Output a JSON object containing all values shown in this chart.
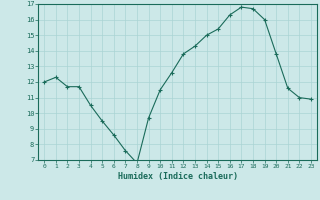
{
  "x": [
    0,
    1,
    2,
    3,
    4,
    5,
    6,
    7,
    8,
    9,
    10,
    11,
    12,
    13,
    14,
    15,
    16,
    17,
    18,
    19,
    20,
    21,
    22,
    23
  ],
  "y": [
    12.0,
    12.3,
    11.7,
    11.7,
    10.5,
    9.5,
    8.6,
    7.6,
    6.8,
    9.7,
    11.5,
    12.6,
    13.8,
    14.3,
    15.0,
    15.4,
    16.3,
    16.8,
    16.7,
    16.0,
    13.8,
    11.6,
    11.0,
    10.9
  ],
  "xlabel": "Humidex (Indice chaleur)",
  "ylim": [
    7,
    17
  ],
  "xlim": [
    -0.5,
    23.5
  ],
  "yticks": [
    7,
    8,
    9,
    10,
    11,
    12,
    13,
    14,
    15,
    16,
    17
  ],
  "xticks": [
    0,
    1,
    2,
    3,
    4,
    5,
    6,
    7,
    8,
    9,
    10,
    11,
    12,
    13,
    14,
    15,
    16,
    17,
    18,
    19,
    20,
    21,
    22,
    23
  ],
  "line_color": "#1a6b5a",
  "marker": "+",
  "bg_color": "#cce8e8",
  "grid_color": "#aad4d4",
  "tick_color": "#1a6b5a",
  "label_color": "#1a6b5a",
  "spine_color": "#1a6b5a"
}
